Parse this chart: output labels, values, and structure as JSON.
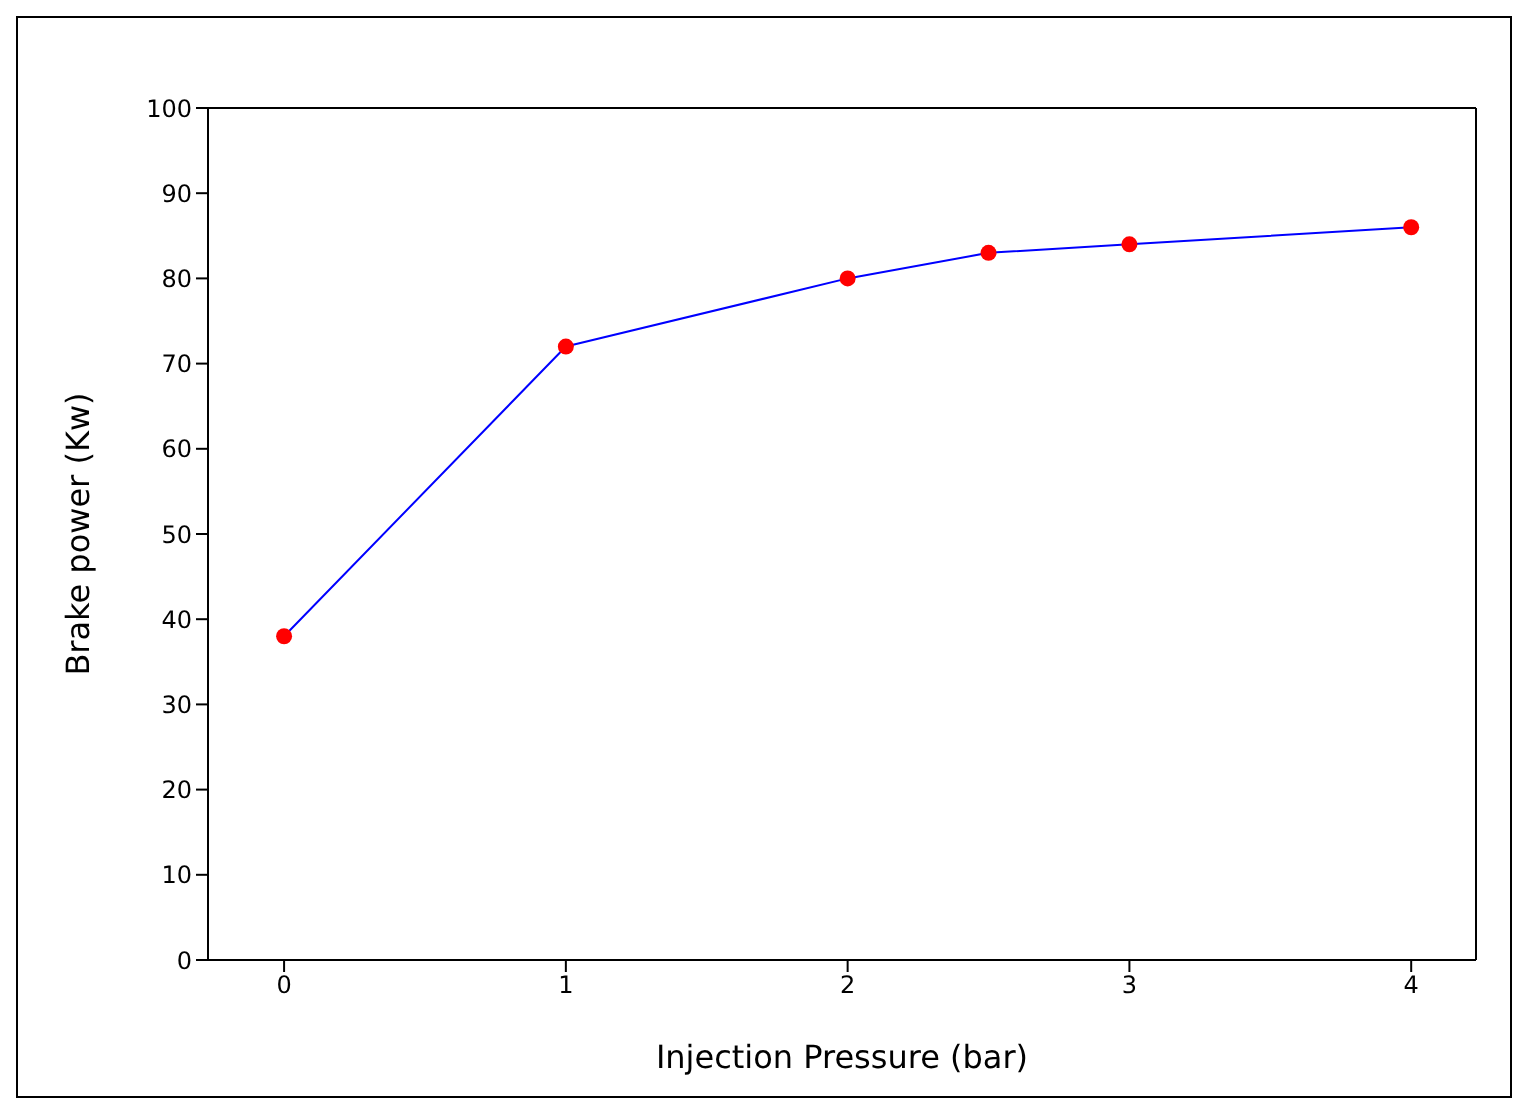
{
  "chart_data": {
    "type": "line",
    "xlabel": "Injection Pressure (bar)",
    "ylabel": "Brake power (Kw)",
    "x": [
      0,
      1,
      2,
      2.5,
      3,
      4
    ],
    "series": [
      {
        "color": "#0000ff",
        "colors": [
          "#ff0000",
          "#ff0000",
          "#ff0000",
          "#ff0000",
          "#ff0000",
          "#ff0000"
        ],
        "values": [
          38,
          72,
          80,
          83,
          84,
          86
        ]
      }
    ],
    "marker": "circle",
    "line_style": "solid",
    "xlim": [
      -0.27,
      4.23
    ],
    "xticks": [
      0,
      1,
      2,
      3,
      4
    ],
    "ylim": [
      0,
      100
    ],
    "yticks": [
      0,
      10,
      20,
      30,
      40,
      50,
      60,
      70,
      80,
      90,
      100
    ],
    "grid": false
  }
}
